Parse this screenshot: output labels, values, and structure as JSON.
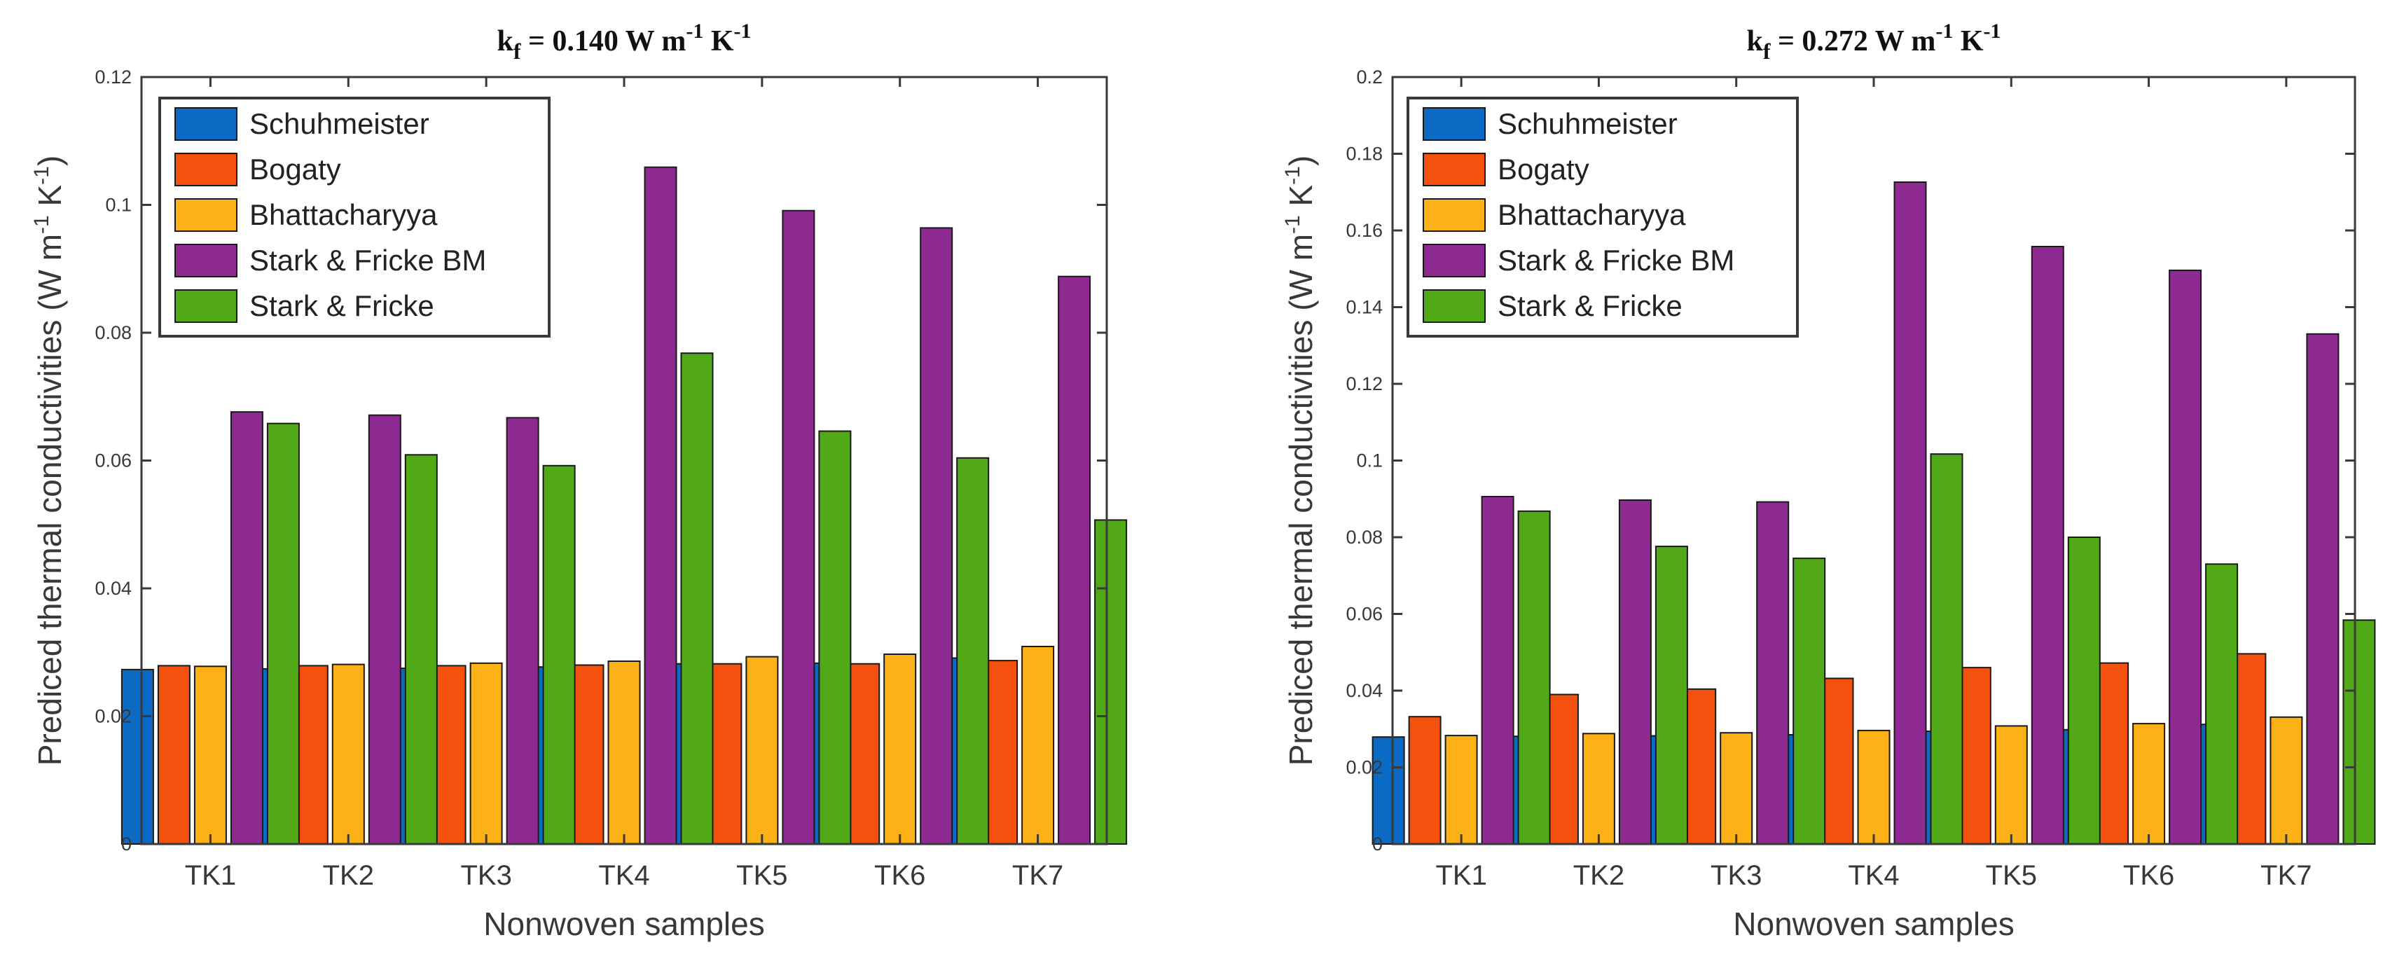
{
  "chart_data": [
    {
      "type": "bar",
      "title": "k_f = 0.140 W m^-1 K^-1",
      "title_parts": {
        "symbol": "k",
        "subscript": "f",
        "value": " = 0.140 W  m",
        "exp1": "-1",
        "unit2": " K",
        "exp2": "-1"
      },
      "xlabel": "Nonwoven samples",
      "ylabel_parts": {
        "prefix": "Prediced thermal conductivities (W m",
        "exp1": "-1",
        "mid": " K",
        "exp2": "-1",
        "suffix": ")"
      },
      "categories": [
        "TK1",
        "TK2",
        "TK3",
        "TK4",
        "TK5",
        "TK6",
        "TK7"
      ],
      "ylim": [
        0,
        0.12
      ],
      "yticks": [
        0,
        0.02,
        0.04,
        0.06,
        0.08,
        0.1,
        0.12
      ],
      "ytick_labels": [
        "0",
        "0.02",
        "0.04",
        "0.06",
        "0.08",
        "0.1",
        "0.12"
      ],
      "legend_position": "top-left",
      "series": [
        {
          "name": "Schuhmeister",
          "values": [
            0.0273,
            0.0274,
            0.0275,
            0.0277,
            0.0282,
            0.0283,
            0.0291
          ]
        },
        {
          "name": "Bogaty",
          "values": [
            0.0279,
            0.0279,
            0.0279,
            0.028,
            0.0282,
            0.0282,
            0.0287
          ]
        },
        {
          "name": "Bhattacharyya",
          "values": [
            0.0278,
            0.0281,
            0.0283,
            0.0286,
            0.0293,
            0.0297,
            0.0309
          ]
        },
        {
          "name": "Stark & Fricke BM",
          "values": [
            0.0676,
            0.0671,
            0.0667,
            0.1059,
            0.0991,
            0.0964,
            0.0888
          ]
        },
        {
          "name": "Stark & Fricke",
          "values": [
            0.0658,
            0.0609,
            0.0592,
            0.0768,
            0.0646,
            0.0604,
            0.0507
          ]
        }
      ]
    },
    {
      "type": "bar",
      "title": "k_f = 0.272 W m^-1 K^-1",
      "title_parts": {
        "symbol": "k",
        "subscript": "f",
        "value": " = 0.272 W  m",
        "exp1": "-1",
        "unit2": " K",
        "exp2": "-1"
      },
      "xlabel": "Nonwoven samples",
      "ylabel_parts": {
        "prefix": "Prediced thermal conductivities (W m",
        "exp1": "-1",
        "mid": " K",
        "exp2": "-1",
        "suffix": ")"
      },
      "categories": [
        "TK1",
        "TK2",
        "TK3",
        "TK4",
        "TK5",
        "TK6",
        "TK7"
      ],
      "ylim": [
        0,
        0.2
      ],
      "yticks": [
        0,
        0.02,
        0.04,
        0.06,
        0.08,
        0.1,
        0.12,
        0.14,
        0.16,
        0.18,
        0.2
      ],
      "ytick_labels": [
        "0",
        "0.02",
        "0.04",
        "0.06",
        "0.08",
        "0.1",
        "0.12",
        "0.14",
        "0.16",
        "0.18",
        "0.2"
      ],
      "legend_position": "top-left",
      "series": [
        {
          "name": "Schuhmeister",
          "values": [
            0.0279,
            0.0281,
            0.0282,
            0.0285,
            0.0294,
            0.0298,
            0.0312
          ]
        },
        {
          "name": "Bogaty",
          "values": [
            0.0332,
            0.039,
            0.0404,
            0.0432,
            0.046,
            0.0472,
            0.0496
          ]
        },
        {
          "name": "Bhattacharyya",
          "values": [
            0.0283,
            0.0288,
            0.029,
            0.0296,
            0.0308,
            0.0314,
            0.0331
          ]
        },
        {
          "name": "Stark & Fricke BM",
          "values": [
            0.0906,
            0.0897,
            0.0892,
            0.1726,
            0.1558,
            0.1496,
            0.133
          ]
        },
        {
          "name": "Stark & Fricke",
          "values": [
            0.0868,
            0.0776,
            0.0745,
            0.1017,
            0.08,
            0.073,
            0.0584
          ]
        }
      ]
    }
  ],
  "colors": {
    "series": [
      "#0b6bc4",
      "#f4510e",
      "#fcb216",
      "#8e2b93",
      "#52a918"
    ],
    "axis": "#3a3a3a",
    "text": "#383838"
  }
}
